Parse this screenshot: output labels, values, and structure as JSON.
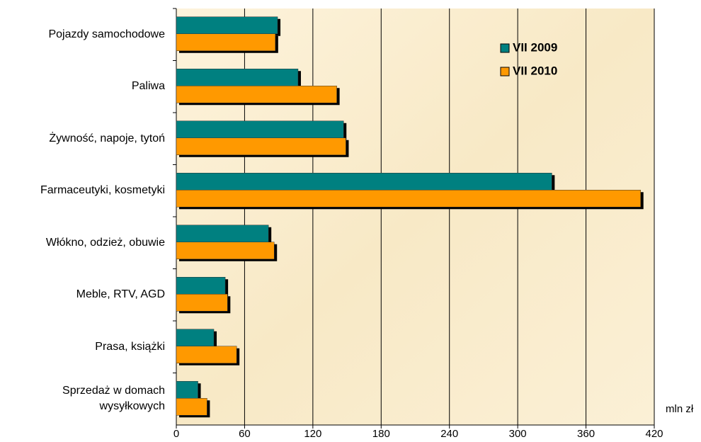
{
  "chart_data": {
    "type": "hbar",
    "categories": [
      "Pojazdy samochodowe",
      "Paliwa",
      "Żywność, napoje, tytoń",
      "Farmaceutyki, kosmetyki",
      "Włókno, odzież, obuwie",
      "Meble, RTV, AGD",
      "Prasa, książki",
      "Sprzedaż w domach wysyłkowych"
    ],
    "series": [
      {
        "name": "VII 2009",
        "color": "#008080",
        "values": [
          89,
          107,
          147,
          330,
          81,
          43,
          33,
          19
        ]
      },
      {
        "name": "VII 2010",
        "color": "#ff9900",
        "values": [
          87,
          141,
          149,
          408,
          86,
          45,
          53,
          27
        ]
      }
    ],
    "xlim": [
      0,
      420
    ],
    "xticks": [
      0,
      60,
      120,
      180,
      240,
      300,
      360,
      420
    ],
    "unit_label": "mln zł",
    "grid": true,
    "legend": "top-right"
  }
}
